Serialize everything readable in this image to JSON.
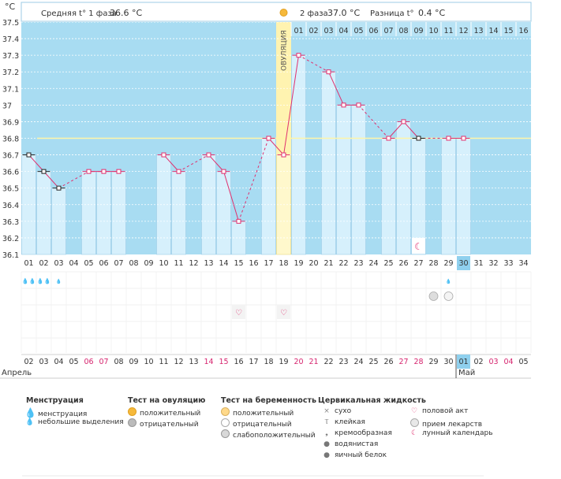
{
  "header": {
    "unit": "°C",
    "phase1_label": "Средняя t° 1 фаза",
    "phase1_value": "36.6 °C",
    "phase2_label": "2 фаза",
    "phase2_value": "37.0 °C",
    "diff_label": "Разница t°",
    "diff_value": "0.4 °C"
  },
  "colors": {
    "bg_blue": "#a8dcf2",
    "bar_fill": "#d6f0fc",
    "bar_stroke": "#9ccbe6",
    "ovu_fill": "#fff3b0",
    "line": "#e0306e",
    "coverline": "#fff5a8",
    "header_cell": "#b8e3f5",
    "highlight": "#8fd0ee",
    "red_label": "#d6246e"
  },
  "chart_data": {
    "type": "bar",
    "title": "",
    "ylabel": "°C",
    "ylim": [
      36.1,
      37.5
    ],
    "yticks": [
      "37.5",
      "37.4",
      "37.3",
      "37.2",
      "37.1",
      "37",
      "36.9",
      "36.8",
      "36.7",
      "36.6",
      "36.5",
      "36.4",
      "36.3",
      "36.2",
      "36.1"
    ],
    "coverline": 36.8,
    "ovulation_day": 18,
    "ovulation_label": "ОВУЛЯЦИЯ",
    "cycle_days": [
      "01",
      "02",
      "03",
      "04",
      "05",
      "06",
      "07",
      "08",
      "09",
      "10",
      "11",
      "12",
      "13",
      "14",
      "15",
      "16",
      "17",
      "18",
      "19",
      "20",
      "21",
      "22",
      "23",
      "24",
      "25",
      "26",
      "27",
      "28",
      "29",
      "30",
      "31",
      "32",
      "33",
      "34"
    ],
    "post_ovulation_days": [
      "01",
      "02",
      "03",
      "04",
      "05",
      "06",
      "07",
      "08",
      "09",
      "10",
      "11",
      "12",
      "13",
      "14",
      "15",
      "16"
    ],
    "current_day": 30,
    "temperatures": [
      36.7,
      36.6,
      36.5,
      null,
      36.6,
      36.6,
      36.6,
      null,
      null,
      36.7,
      36.6,
      null,
      36.7,
      36.6,
      36.3,
      null,
      36.8,
      36.7,
      37.3,
      null,
      37.2,
      37.0,
      37.0,
      null,
      36.8,
      36.9,
      36.8,
      null,
      36.8,
      36.8,
      null,
      null,
      null,
      null
    ],
    "marker_styles": [
      "b",
      "b",
      "b",
      null,
      "p",
      "p",
      "p",
      null,
      null,
      "p",
      "p",
      null,
      "p",
      "p",
      "p",
      null,
      "p",
      "p",
      "p",
      null,
      "p",
      "p",
      "p",
      null,
      "p",
      "p",
      "b",
      null,
      "p",
      "p",
      null,
      null,
      null,
      null
    ],
    "dates": [
      "02",
      "03",
      "04",
      "05",
      "06",
      "07",
      "08",
      "09",
      "10",
      "11",
      "12",
      "13",
      "14",
      "15",
      "16",
      "17",
      "18",
      "19",
      "20",
      "21",
      "22",
      "23",
      "24",
      "25",
      "26",
      "27",
      "28",
      "29",
      "30",
      "01",
      "02",
      "03",
      "04",
      "05"
    ],
    "red_dates": [
      4,
      5,
      12,
      13,
      18,
      19,
      25,
      26,
      31,
      32
    ],
    "month_start": "Апрель",
    "month_next": "Май",
    "menstruation_days": [
      1,
      2,
      3
    ],
    "intercourse_days": [
      15,
      18
    ],
    "moon_days": [
      27
    ],
    "pregnancy_test_days": [
      28,
      29
    ]
  },
  "legend": {
    "menstruation": {
      "title": "Менструация",
      "items": [
        "менструация",
        "небольшие выделения"
      ]
    },
    "ovulation_test": {
      "title": "Тест на овуляцию",
      "items": [
        "положительный",
        "отрицательный"
      ]
    },
    "pregnancy_test": {
      "title": "Тест на беременность",
      "items": [
        "положительный",
        "отрицательный",
        "слабоположительный"
      ]
    },
    "cervical": {
      "title": "Цервикальная жидкость",
      "items": [
        "сухо",
        "клейкая",
        "кремообразная",
        "водянистая",
        "яичный белок"
      ]
    },
    "other": {
      "items": [
        "половой акт",
        "прием лекарств",
        "лунный календарь"
      ]
    }
  }
}
